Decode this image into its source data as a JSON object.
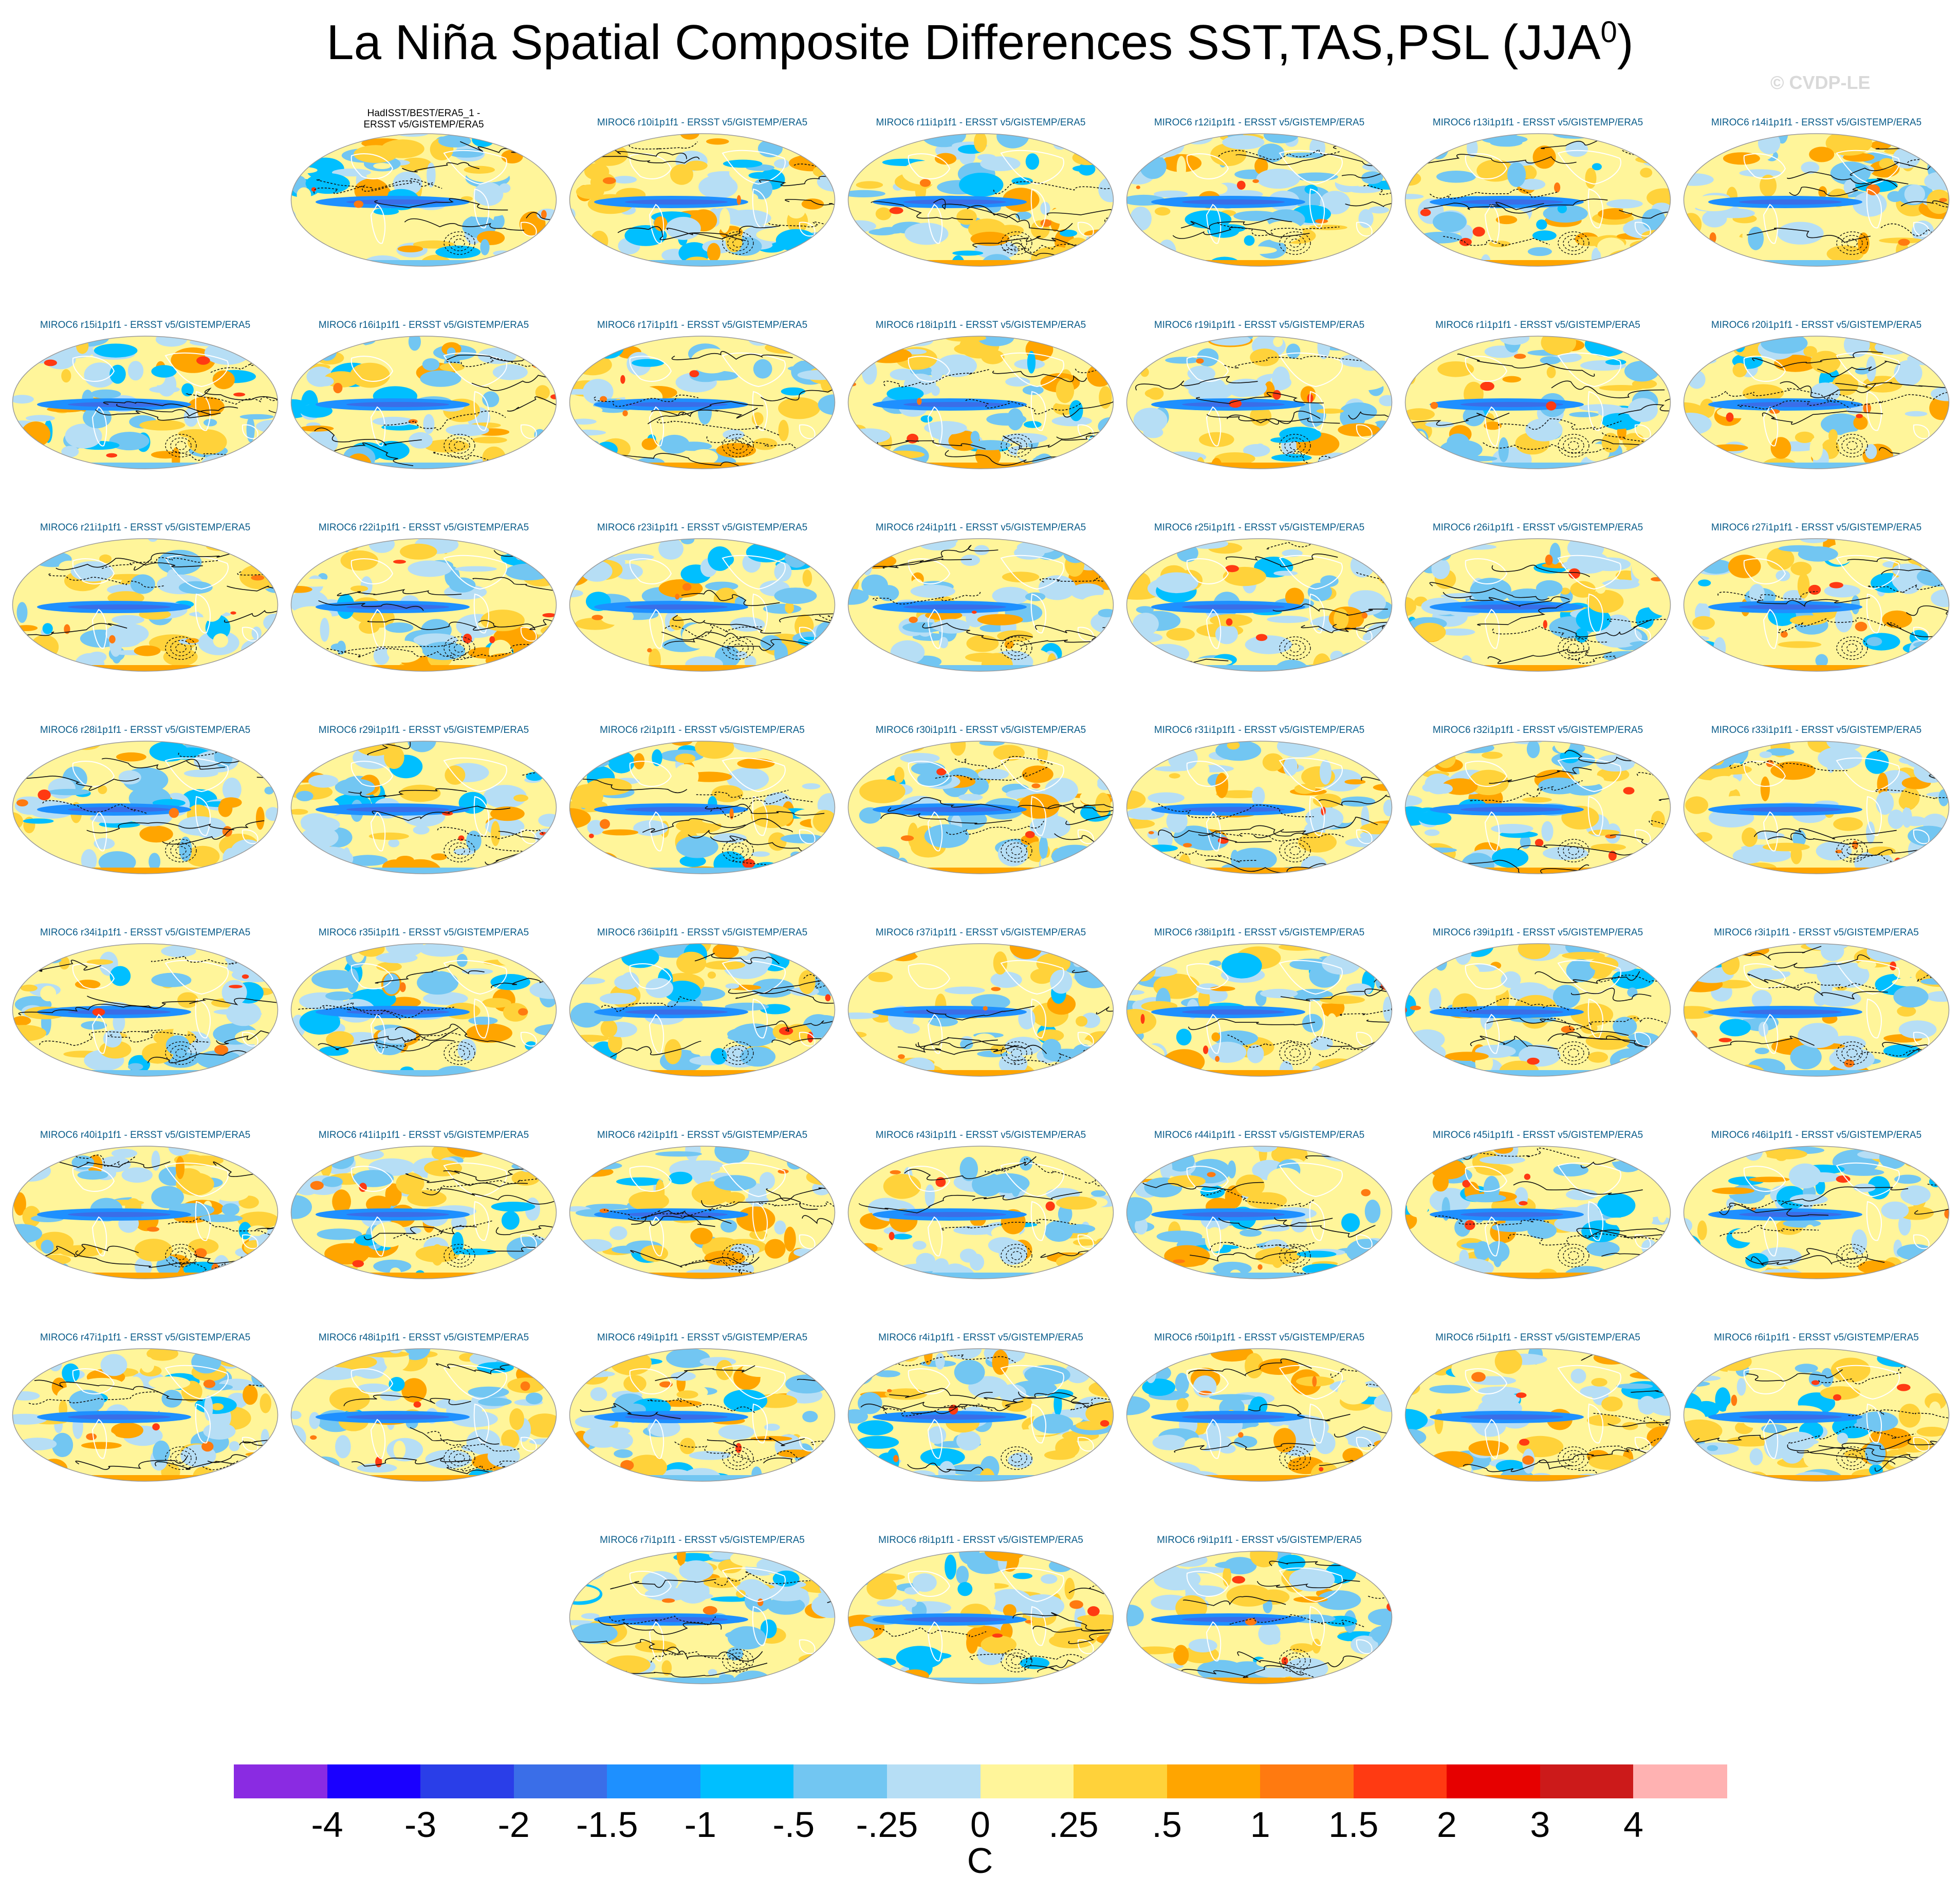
{
  "title_main": "La Niña Spatial Composite Differences SST,TAS,PSL (JJA",
  "title_sup": "0",
  "title_close": ")",
  "watermark": "© CVDP-LE",
  "obs_panel": {
    "line1": "HadISST/BEST/ERA5_1 -",
    "line2": "ERSST v5/GISTEMP/ERA5"
  },
  "panels": [
    "MIROC6 r10i1p1f1 - ERSST v5/GISTEMP/ERA5",
    "MIROC6 r11i1p1f1 - ERSST v5/GISTEMP/ERA5",
    "MIROC6 r12i1p1f1 - ERSST v5/GISTEMP/ERA5",
    "MIROC6 r13i1p1f1 - ERSST v5/GISTEMP/ERA5",
    "MIROC6 r14i1p1f1 - ERSST v5/GISTEMP/ERA5",
    "MIROC6 r15i1p1f1 - ERSST v5/GISTEMP/ERA5",
    "MIROC6 r16i1p1f1 - ERSST v5/GISTEMP/ERA5",
    "MIROC6 r17i1p1f1 - ERSST v5/GISTEMP/ERA5",
    "MIROC6 r18i1p1f1 - ERSST v5/GISTEMP/ERA5",
    "MIROC6 r19i1p1f1 - ERSST v5/GISTEMP/ERA5",
    "MIROC6 r1i1p1f1 - ERSST v5/GISTEMP/ERA5",
    "MIROC6 r20i1p1f1 - ERSST v5/GISTEMP/ERA5",
    "MIROC6 r21i1p1f1 - ERSST v5/GISTEMP/ERA5",
    "MIROC6 r22i1p1f1 - ERSST v5/GISTEMP/ERA5",
    "MIROC6 r23i1p1f1 - ERSST v5/GISTEMP/ERA5",
    "MIROC6 r24i1p1f1 - ERSST v5/GISTEMP/ERA5",
    "MIROC6 r25i1p1f1 - ERSST v5/GISTEMP/ERA5",
    "MIROC6 r26i1p1f1 - ERSST v5/GISTEMP/ERA5",
    "MIROC6 r27i1p1f1 - ERSST v5/GISTEMP/ERA5",
    "MIROC6 r28i1p1f1 - ERSST v5/GISTEMP/ERA5",
    "MIROC6 r29i1p1f1 - ERSST v5/GISTEMP/ERA5",
    "MIROC6 r2i1p1f1 - ERSST v5/GISTEMP/ERA5",
    "MIROC6 r30i1p1f1 - ERSST v5/GISTEMP/ERA5",
    "MIROC6 r31i1p1f1 - ERSST v5/GISTEMP/ERA5",
    "MIROC6 r32i1p1f1 - ERSST v5/GISTEMP/ERA5",
    "MIROC6 r33i1p1f1 - ERSST v5/GISTEMP/ERA5",
    "MIROC6 r34i1p1f1 - ERSST v5/GISTEMP/ERA5",
    "MIROC6 r35i1p1f1 - ERSST v5/GISTEMP/ERA5",
    "MIROC6 r36i1p1f1 - ERSST v5/GISTEMP/ERA5",
    "MIROC6 r37i1p1f1 - ERSST v5/GISTEMP/ERA5",
    "MIROC6 r38i1p1f1 - ERSST v5/GISTEMP/ERA5",
    "MIROC6 r39i1p1f1 - ERSST v5/GISTEMP/ERA5",
    "MIROC6 r3i1p1f1 - ERSST v5/GISTEMP/ERA5",
    "MIROC6 r40i1p1f1 - ERSST v5/GISTEMP/ERA5",
    "MIROC6 r41i1p1f1 - ERSST v5/GISTEMP/ERA5",
    "MIROC6 r42i1p1f1 - ERSST v5/GISTEMP/ERA5",
    "MIROC6 r43i1p1f1 - ERSST v5/GISTEMP/ERA5",
    "MIROC6 r44i1p1f1 - ERSST v5/GISTEMP/ERA5",
    "MIROC6 r45i1p1f1 - ERSST v5/GISTEMP/ERA5",
    "MIROC6 r46i1p1f1 - ERSST v5/GISTEMP/ERA5",
    "MIROC6 r47i1p1f1 - ERSST v5/GISTEMP/ERA5",
    "MIROC6 r48i1p1f1 - ERSST v5/GISTEMP/ERA5",
    "MIROC6 r49i1p1f1 - ERSST v5/GISTEMP/ERA5",
    "MIROC6 r4i1p1f1 - ERSST v5/GISTEMP/ERA5",
    "MIROC6 r50i1p1f1 - ERSST v5/GISTEMP/ERA5",
    "MIROC6 r5i1p1f1 - ERSST v5/GISTEMP/ERA5",
    "MIROC6 r6i1p1f1 - ERSST v5/GISTEMP/ERA5",
    "MIROC6 r7i1p1f1 - ERSST v5/GISTEMP/ERA5",
    "MIROC6 r8i1p1f1 - ERSST v5/GISTEMP/ERA5",
    "MIROC6 r9i1p1f1 - ERSST v5/GISTEMP/ERA5"
  ],
  "colorbar": {
    "unit": "C",
    "labels": [
      "-4",
      "-3",
      "-2",
      "-1.5",
      "-1",
      "-.5",
      "-.25",
      "0",
      ".25",
      ".5",
      "1",
      "1.5",
      "2",
      "3",
      "4"
    ],
    "colors": [
      "#8a2be2",
      "#1a00ff",
      "#2a3ee8",
      "#3a6ee8",
      "#1e90ff",
      "#00bfff",
      "#72c6f2",
      "#b6def5",
      "#fff59a",
      "#ffd23a",
      "#ffa500",
      "#ff7a10",
      "#ff3a12",
      "#e60000",
      "#cc1a1a",
      "#ffb2b2"
    ]
  },
  "chart_data": {
    "type": "heatmap",
    "description_fields": "panel grid of spatial composite maps",
    "variables": [
      "SST",
      "TAS",
      "PSL"
    ],
    "season": "JJA",
    "units": "C",
    "levels": [
      -4,
      -3,
      -2,
      -1.5,
      -1,
      -0.5,
      -0.25,
      0,
      0.25,
      0.5,
      1,
      1.5,
      2,
      3,
      4
    ],
    "panel_count": 51
  }
}
